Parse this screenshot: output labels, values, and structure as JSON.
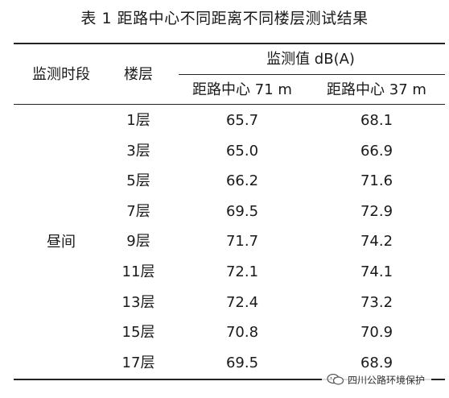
{
  "title": "表 1  距路中心不同距离不同楼层测试结果",
  "header": {
    "period": "监测时段",
    "floor": "楼层",
    "group": "监测值 dB(A)",
    "dist_a": "距路中心 71 m",
    "dist_b": "距路中心 37 m"
  },
  "period_value": "昼间",
  "rows": [
    {
      "floor": "1层",
      "a": "65.7",
      "b": "68.1"
    },
    {
      "floor": "3层",
      "a": "65.0",
      "b": "66.9"
    },
    {
      "floor": "5层",
      "a": "66.2",
      "b": "71.6"
    },
    {
      "floor": "7层",
      "a": "69.5",
      "b": "72.9"
    },
    {
      "floor": "9层",
      "a": "71.7",
      "b": "74.2"
    },
    {
      "floor": "11层",
      "a": "72.1",
      "b": "74.1"
    },
    {
      "floor": "13层",
      "a": "72.4",
      "b": "73.2"
    },
    {
      "floor": "15层",
      "a": "70.8",
      "b": "70.9"
    },
    {
      "floor": "17层",
      "a": "69.5",
      "b": "68.9"
    }
  ],
  "watermark": {
    "text": "四川公路环境保护",
    "icon": "wechat-icon"
  }
}
